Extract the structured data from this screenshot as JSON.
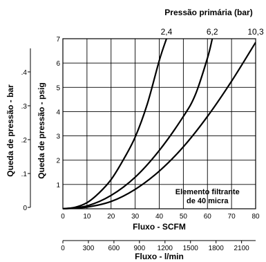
{
  "chart_data": {
    "type": "line",
    "title": "Pressão primária (bar)",
    "xlabel": "Fluxo - SCFM",
    "ylabel": "Queda de pressão - psig",
    "xlim": [
      0,
      80
    ],
    "ylim": [
      0,
      7
    ],
    "grid": true,
    "x_ticks": [
      0,
      10,
      20,
      30,
      40,
      50,
      60,
      70,
      80
    ],
    "y_ticks": [
      1,
      2,
      3,
      4,
      5,
      6,
      7
    ],
    "series": [
      {
        "name": "2,4",
        "x": [
          0,
          5,
          10,
          15,
          20,
          25,
          30,
          35,
          40,
          43
        ],
        "y": [
          0,
          0.06,
          0.25,
          0.65,
          1.2,
          2.0,
          2.95,
          4.3,
          6.1,
          7.0
        ]
      },
      {
        "name": "6,2",
        "x": [
          0,
          10,
          20,
          30,
          40,
          50,
          55,
          60,
          62
        ],
        "y": [
          0,
          0.12,
          0.55,
          1.3,
          2.4,
          3.8,
          4.7,
          6.2,
          7.0
        ]
      },
      {
        "name": "10,3",
        "x": [
          0,
          10,
          20,
          30,
          40,
          50,
          60,
          70,
          80
        ],
        "y": [
          0,
          0.07,
          0.3,
          0.8,
          1.55,
          2.55,
          3.8,
          5.25,
          6.85
        ]
      }
    ],
    "annotation": [
      "Elemento filtrante",
      "de 40 micra"
    ],
    "secondary_y_left": {
      "label": "Queda de pressão - bar",
      "ticks": [
        0,
        0.1,
        0.2,
        0.3,
        0.4
      ],
      "tick_labels": [
        "0",
        ".1",
        ".2",
        ".3",
        ".4"
      ]
    },
    "secondary_x_bottom": {
      "label": "Fluxo - l/min",
      "ticks": [
        0,
        300,
        600,
        900,
        1200,
        1500,
        1800,
        2100
      ]
    }
  }
}
